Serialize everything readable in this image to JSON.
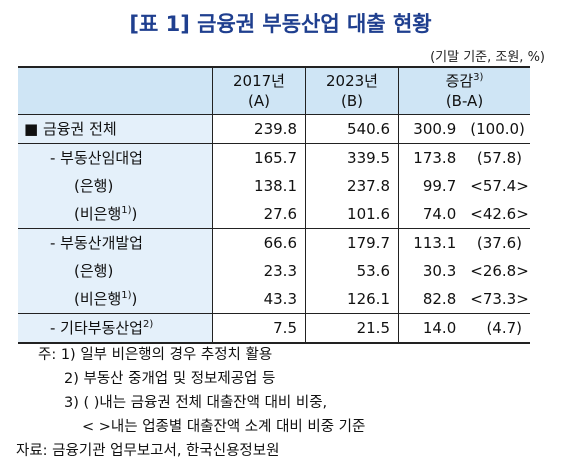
{
  "title": "[표 1] 금융권 부동산업 대출 현황",
  "unit": "(기말 기준, 조원, %)",
  "headers": {
    "col1": [
      "2017년",
      "(A)"
    ],
    "col2": [
      "2023년",
      "(B)"
    ],
    "col3": [
      "증감",
      "3)",
      "(B-A)"
    ]
  },
  "rows": [
    {
      "label": "■ 금융권 전체",
      "sup": "",
      "v1": "239.8",
      "v2": "540.6",
      "v3": "300.9",
      "v4": "(100.0)"
    },
    {
      "label": "- 부동산임대업",
      "sup": "",
      "v1": "165.7",
      "v2": "339.5",
      "v3": "173.8",
      "v4": "(57.8)"
    },
    {
      "label": "(은행)",
      "sup": "",
      "v1": "138.1",
      "v2": "237.8",
      "v3": "99.7",
      "v4": "<57.4>"
    },
    {
      "label": "(비은행",
      "sup": "1)",
      "tail": ")",
      "v1": "27.6",
      "v2": "101.6",
      "v3": "74.0",
      "v4": "<42.6>"
    },
    {
      "label": "- 부동산개발업",
      "sup": "",
      "v1": "66.6",
      "v2": "179.7",
      "v3": "113.1",
      "v4": "(37.6)"
    },
    {
      "label": "(은행)",
      "sup": "",
      "v1": "23.3",
      "v2": "53.6",
      "v3": "30.3",
      "v4": "<26.8>"
    },
    {
      "label": "(비은행",
      "sup": "1)",
      "tail": ")",
      "v1": "43.3",
      "v2": "126.1",
      "v3": "82.8",
      "v4": "<73.3>"
    },
    {
      "label": "- 기타부동산업",
      "sup": "2)",
      "v1": "7.5",
      "v2": "21.5",
      "v3": "14.0",
      "v4": "(4.7)"
    }
  ],
  "notes": [
    "주: 1) 일부 비은행의 경우 추정치 활용",
    "2) 부동산 중개업 및 정보제공업 등",
    "3) (   )내는 금융권 전체 대출잔액 대비 비중,",
    "< >내는 업종별 대출잔액 소계 대비 비중 기준",
    "자료: 금융기관 업무보고서, 한국신용정보원"
  ]
}
